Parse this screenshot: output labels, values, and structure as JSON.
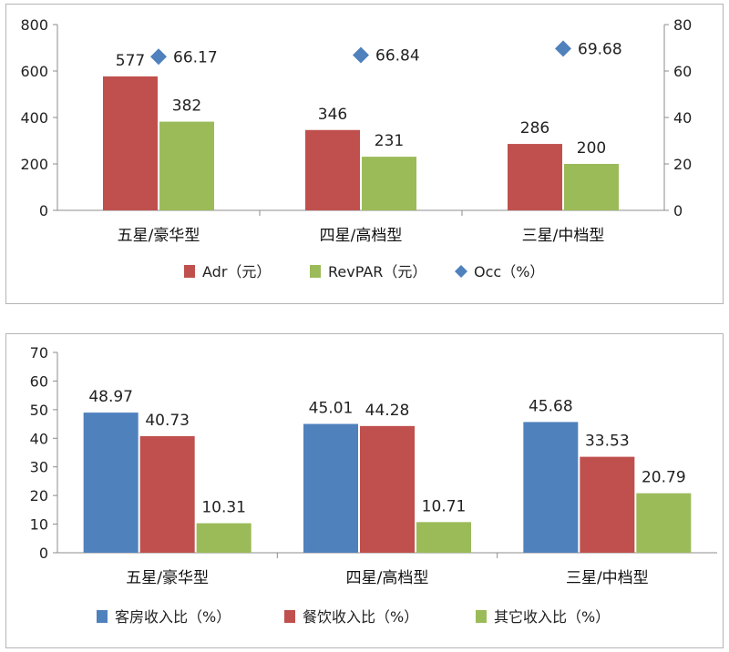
{
  "chart_data": [
    {
      "type": "bar",
      "categories": [
        "五星/豪华型",
        "四星/高档型",
        "三星/中档型"
      ],
      "series": [
        {
          "name": "Adr（元）",
          "values": [
            577,
            346,
            286
          ],
          "color": "#c0504d",
          "axis": "left"
        },
        {
          "name": "RevPAR（元）",
          "values": [
            382,
            231,
            200
          ],
          "color": "#9bbb59",
          "axis": "left"
        },
        {
          "name": "Occ（%）",
          "values": [
            66.17,
            66.84,
            69.68
          ],
          "color": "#4f81bd",
          "axis": "right",
          "marker": "diamond"
        }
      ],
      "data_labels": {
        "Adr（元）": [
          "577",
          "346",
          "286"
        ],
        "RevPAR（元）": [
          "382",
          "231",
          "200"
        ],
        "Occ（%）": [
          "66.17",
          "66.84",
          "69.68"
        ]
      },
      "y_ticks": [
        "0",
        "200",
        "400",
        "600",
        "800"
      ],
      "y2_ticks": [
        "0",
        "20",
        "40",
        "60",
        "80"
      ],
      "ylim": [
        0,
        800
      ],
      "y2lim": [
        0,
        80
      ],
      "grid": false,
      "legend": "bottom"
    },
    {
      "type": "bar",
      "categories": [
        "五星/豪华型",
        "四星/高档型",
        "三星/中档型"
      ],
      "series": [
        {
          "name": "客房收入比（%）",
          "values": [
            48.97,
            45.01,
            45.68
          ],
          "color": "#4f81bd"
        },
        {
          "name": "餐饮收入比（%）",
          "values": [
            40.73,
            44.28,
            33.53
          ],
          "color": "#c0504d"
        },
        {
          "name": "其它收入比（%）",
          "values": [
            10.31,
            10.71,
            20.79
          ],
          "color": "#9bbb59"
        }
      ],
      "data_labels": {
        "客房收入比（%）": [
          "48.97",
          "45.01",
          "45.68"
        ],
        "餐饮收入比（%）": [
          "40.73",
          "44.28",
          "33.53"
        ],
        "其它收入比（%）": [
          "10.31",
          "10.71",
          "20.79"
        ]
      },
      "y_ticks": [
        "0",
        "10",
        "20",
        "30",
        "40",
        "50",
        "60",
        "70"
      ],
      "ylim": [
        0,
        70
      ],
      "grid": false,
      "legend": "bottom"
    }
  ]
}
